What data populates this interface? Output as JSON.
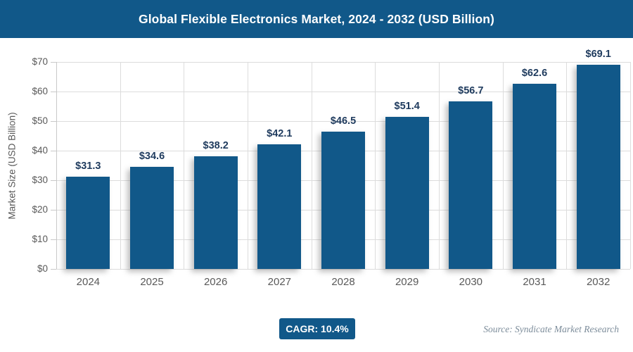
{
  "header": {
    "title": "Global Flexible Electronics Market, 2024 - 2032 (USD Billion)"
  },
  "chart_data": {
    "type": "bar",
    "categories": [
      "2024",
      "2025",
      "2026",
      "2027",
      "2028",
      "2029",
      "2030",
      "2031",
      "2032"
    ],
    "values": [
      31.3,
      34.6,
      38.2,
      42.1,
      46.5,
      51.4,
      56.7,
      62.6,
      69.1
    ],
    "value_labels": [
      "$31.3",
      "$34.6",
      "$38.2",
      "$42.1",
      "$46.5",
      "$51.4",
      "$56.7",
      "$62.6",
      "$69.1"
    ],
    "title": "Global Flexible Electronics Market, 2024 - 2032 (USD Billion)",
    "xlabel": "",
    "ylabel": "Market Size (USD Billion)",
    "ylim": [
      0,
      70
    ],
    "ytick_labels": [
      "$0",
      "$10",
      "$20",
      "$30",
      "$40",
      "$50",
      "$60",
      "$70"
    ],
    "grid": true,
    "legend": false,
    "bar_color": "#115889"
  },
  "footer": {
    "cagr_label": "CAGR: 10.4%",
    "source": "Source: Syndicate Market Research"
  },
  "colors": {
    "primary_blue": "#115889",
    "value_label_text": "#1f3b5e",
    "axis_text": "#595959",
    "gridline": "#dcdcdc",
    "source_text": "#7d8d9b",
    "title_text": "#ffffff"
  }
}
